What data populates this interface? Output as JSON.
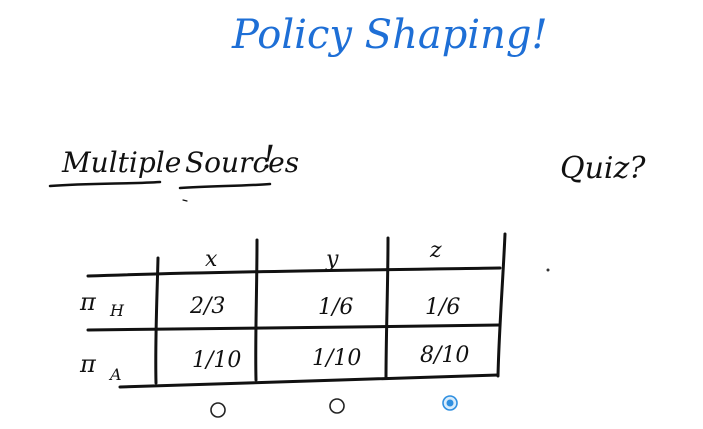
{
  "title": "Policy Shaping!",
  "subtitle": {
    "word1": "Multiple",
    "word2": "Sources",
    "bang": "!"
  },
  "quiz_label": "Quiz?",
  "table": {
    "columns": [
      "x",
      "y",
      "z"
    ],
    "rows": [
      {
        "label": "π",
        "sub": "H",
        "cells": [
          "2/3",
          "1/6",
          "1/6"
        ]
      },
      {
        "label": "π",
        "sub": "A",
        "cells": [
          "1/10",
          "1/10",
          "8/10"
        ]
      }
    ]
  },
  "answer": {
    "options": [
      "x",
      "y",
      "z"
    ],
    "selected": "z",
    "selected_color": "#2f8fe0"
  }
}
